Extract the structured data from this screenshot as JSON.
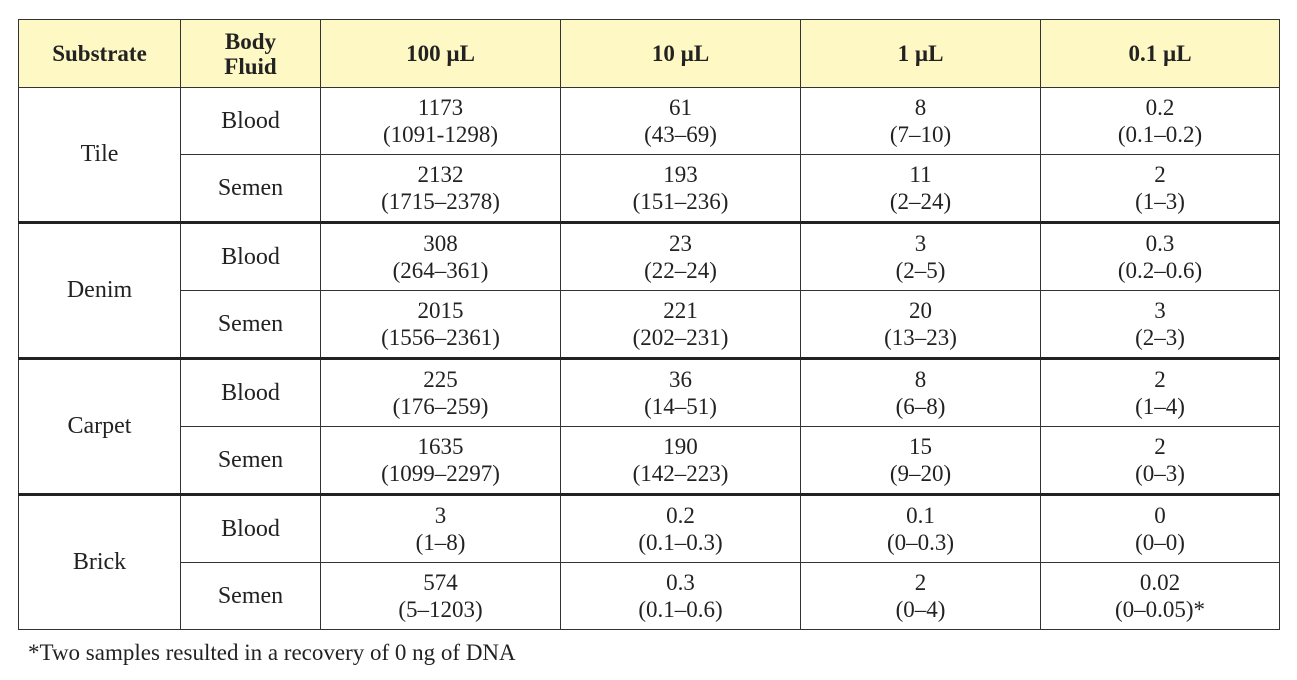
{
  "table": {
    "header": [
      "Substrate",
      "Body Fluid",
      "100 µL",
      "10 µL",
      "1 µL",
      "0.1 µL"
    ],
    "groups": [
      {
        "substrate": "Tile",
        "rows": [
          {
            "fluid": "Blood",
            "cells": [
              {
                "value": "1173",
                "range": "(1091-1298)"
              },
              {
                "value": "61",
                "range": "(43–69)"
              },
              {
                "value": "8",
                "range": "(7–10)"
              },
              {
                "value": "0.2",
                "range": "(0.1–0.2)"
              }
            ]
          },
          {
            "fluid": "Semen",
            "cells": [
              {
                "value": "2132",
                "range": "(1715–2378)"
              },
              {
                "value": "193",
                "range": "(151–236)"
              },
              {
                "value": "11",
                "range": "(2–24)"
              },
              {
                "value": "2",
                "range": "(1–3)"
              }
            ]
          }
        ]
      },
      {
        "substrate": "Denim",
        "rows": [
          {
            "fluid": "Blood",
            "cells": [
              {
                "value": "308",
                "range": "(264–361)"
              },
              {
                "value": "23",
                "range": "(22–24)"
              },
              {
                "value": "3",
                "range": "(2–5)"
              },
              {
                "value": "0.3",
                "range": "(0.2–0.6)"
              }
            ]
          },
          {
            "fluid": "Semen",
            "cells": [
              {
                "value": "2015",
                "range": "(1556–2361)"
              },
              {
                "value": "221",
                "range": "(202–231)"
              },
              {
                "value": "20",
                "range": "(13–23)"
              },
              {
                "value": "3",
                "range": "(2–3)"
              }
            ]
          }
        ]
      },
      {
        "substrate": "Carpet",
        "rows": [
          {
            "fluid": "Blood",
            "cells": [
              {
                "value": "225",
                "range": "(176–259)"
              },
              {
                "value": "36",
                "range": "(14–51)"
              },
              {
                "value": "8",
                "range": "(6–8)"
              },
              {
                "value": "2",
                "range": "(1–4)"
              }
            ]
          },
          {
            "fluid": "Semen",
            "cells": [
              {
                "value": "1635",
                "range": "(1099–2297)"
              },
              {
                "value": "190",
                "range": "(142–223)"
              },
              {
                "value": "15",
                "range": "(9–20)"
              },
              {
                "value": "2",
                "range": "(0–3)"
              }
            ]
          }
        ]
      },
      {
        "substrate": "Brick",
        "rows": [
          {
            "fluid": "Blood",
            "cells": [
              {
                "value": "3",
                "range": "(1–8)"
              },
              {
                "value": "0.2",
                "range": "(0.1–0.3)"
              },
              {
                "value": "0.1",
                "range": "(0–0.3)"
              },
              {
                "value": "0",
                "range": "(0–0)"
              }
            ]
          },
          {
            "fluid": "Semen",
            "cells": [
              {
                "value": "574",
                "range": "(5–1203)"
              },
              {
                "value": "0.3",
                "range": "(0.1–0.6)"
              },
              {
                "value": "2",
                "range": "(0–4)"
              },
              {
                "value": "0.02",
                "range": "(0–0.05)*"
              }
            ]
          }
        ]
      }
    ]
  },
  "footnote": "*Two samples resulted in a recovery of 0 ng of DNA"
}
